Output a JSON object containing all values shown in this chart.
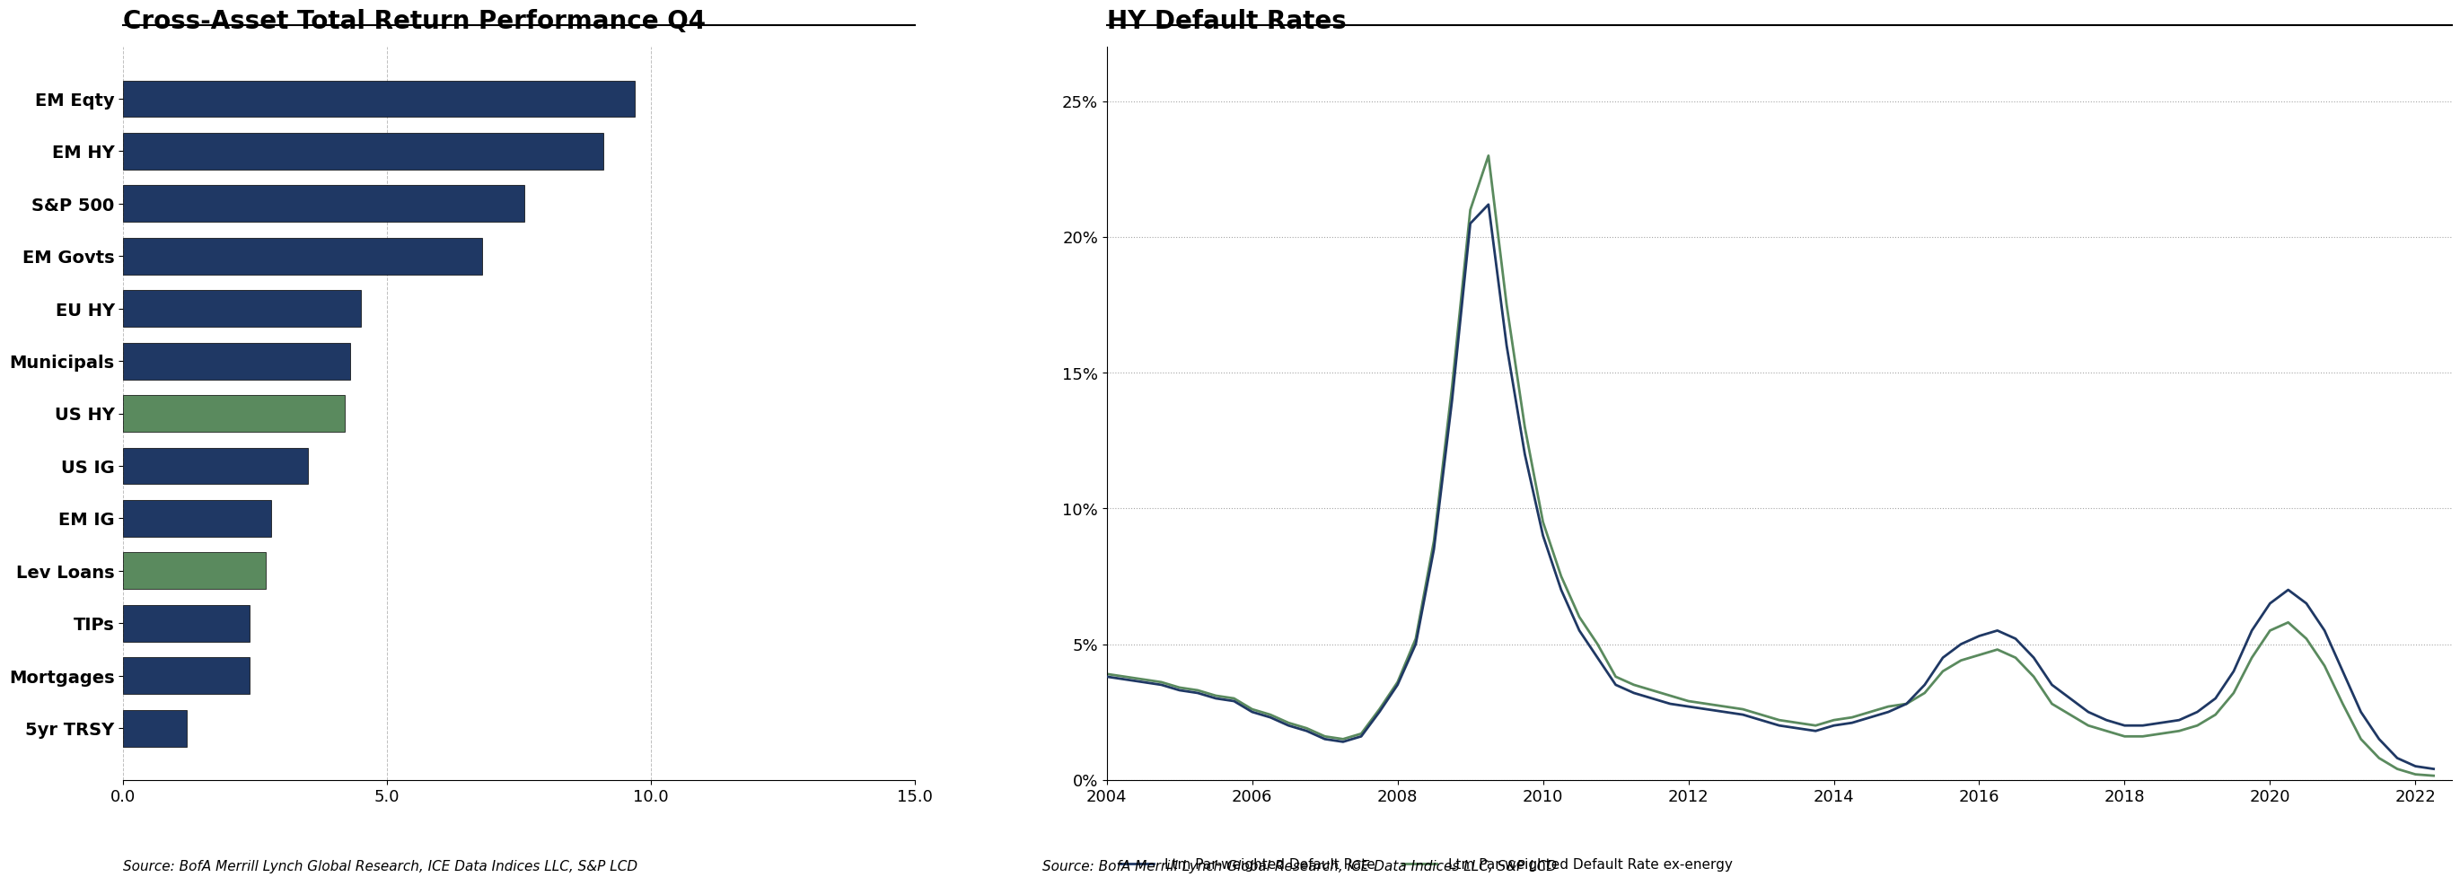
{
  "bar_chart": {
    "title": "Cross-Asset Total Return Performance Q4",
    "categories": [
      "EM Eqty",
      "EM HY",
      "S&P 500",
      "EM Govts",
      "EU HY",
      "Municipals",
      "US HY",
      "US IG",
      "EM IG",
      "Lev Loans",
      "TIPs",
      "Mortgages",
      "5yr TRSY"
    ],
    "values": [
      9.7,
      9.1,
      7.6,
      6.8,
      4.5,
      4.3,
      4.2,
      3.5,
      2.8,
      2.7,
      2.4,
      2.4,
      1.2
    ],
    "colors": [
      "#1f3864",
      "#1f3864",
      "#1f3864",
      "#1f3864",
      "#1f3864",
      "#1f3864",
      "#5a8a5e",
      "#1f3864",
      "#1f3864",
      "#5a8a5e",
      "#1f3864",
      "#1f3864",
      "#1f3864"
    ],
    "xlim": [
      0,
      15
    ],
    "xticks": [
      0.0,
      5.0,
      10.0,
      15.0
    ],
    "source": "Source: BofA Merrill Lynch Global Research, ICE Data Indices LLC, S&P LCD"
  },
  "line_chart": {
    "title": "HY Default Rates",
    "years": [
      2004,
      2004.25,
      2004.5,
      2004.75,
      2005,
      2005.25,
      2005.5,
      2005.75,
      2006,
      2006.25,
      2006.5,
      2006.75,
      2007,
      2007.25,
      2007.5,
      2007.75,
      2008,
      2008.25,
      2008.5,
      2008.75,
      2009,
      2009.25,
      2009.5,
      2009.75,
      2010,
      2010.25,
      2010.5,
      2010.75,
      2011,
      2011.25,
      2011.5,
      2011.75,
      2012,
      2012.25,
      2012.5,
      2012.75,
      2013,
      2013.25,
      2013.5,
      2013.75,
      2014,
      2014.25,
      2014.5,
      2014.75,
      2015,
      2015.25,
      2015.5,
      2015.75,
      2016,
      2016.25,
      2016.5,
      2016.75,
      2017,
      2017.25,
      2017.5,
      2017.75,
      2018,
      2018.25,
      2018.5,
      2018.75,
      2019,
      2019.25,
      2019.5,
      2019.75,
      2020,
      2020.25,
      2020.5,
      2020.75,
      2021,
      2021.25,
      2021.5,
      2021.75,
      2022,
      2022.25
    ],
    "par_weighted": [
      3.8,
      3.7,
      3.6,
      3.5,
      3.3,
      3.2,
      3.0,
      2.9,
      2.5,
      2.3,
      2.0,
      1.8,
      1.5,
      1.4,
      1.6,
      2.5,
      3.5,
      5.0,
      8.5,
      14.0,
      20.5,
      21.2,
      16.0,
      12.0,
      9.0,
      7.0,
      5.5,
      4.5,
      3.5,
      3.2,
      3.0,
      2.8,
      2.7,
      2.6,
      2.5,
      2.4,
      2.2,
      2.0,
      1.9,
      1.8,
      2.0,
      2.1,
      2.3,
      2.5,
      2.8,
      3.5,
      4.5,
      5.0,
      5.3,
      5.5,
      5.2,
      4.5,
      3.5,
      3.0,
      2.5,
      2.2,
      2.0,
      2.0,
      2.1,
      2.2,
      2.5,
      3.0,
      4.0,
      5.5,
      6.5,
      7.0,
      6.5,
      5.5,
      4.0,
      2.5,
      1.5,
      0.8,
      0.5,
      0.4
    ],
    "par_weighted_ex_energy": [
      3.9,
      3.8,
      3.7,
      3.6,
      3.4,
      3.3,
      3.1,
      3.0,
      2.6,
      2.4,
      2.1,
      1.9,
      1.6,
      1.5,
      1.7,
      2.6,
      3.6,
      5.2,
      8.8,
      14.5,
      21.0,
      23.0,
      17.5,
      13.0,
      9.5,
      7.5,
      6.0,
      5.0,
      3.8,
      3.5,
      3.3,
      3.1,
      2.9,
      2.8,
      2.7,
      2.6,
      2.4,
      2.2,
      2.1,
      2.0,
      2.2,
      2.3,
      2.5,
      2.7,
      2.8,
      3.2,
      4.0,
      4.4,
      4.6,
      4.8,
      4.5,
      3.8,
      2.8,
      2.4,
      2.0,
      1.8,
      1.6,
      1.6,
      1.7,
      1.8,
      2.0,
      2.4,
      3.2,
      4.5,
      5.5,
      5.8,
      5.2,
      4.2,
      2.8,
      1.5,
      0.8,
      0.4,
      0.2,
      0.15
    ],
    "dark_blue": "#1f3864",
    "green": "#5a8a5e",
    "ylim": [
      0,
      27
    ],
    "yticks": [
      0,
      5,
      10,
      15,
      20,
      25
    ],
    "ytick_labels": [
      "0%",
      "5%",
      "10%",
      "15%",
      "20%",
      "25%"
    ],
    "xlim": [
      2004,
      2022.5
    ],
    "xticks": [
      2004,
      2006,
      2008,
      2010,
      2012,
      2014,
      2016,
      2018,
      2020,
      2022
    ],
    "xtick_labels": [
      "2004",
      "2006",
      "2008",
      "2010",
      "2012",
      "2014",
      "2016",
      "2018",
      "2020",
      "2022"
    ],
    "legend": [
      "Ltm Par-weighted Default Rate",
      "Ltm Par-weighted Default Rate ex-energy"
    ],
    "source": "Source: BofA Merrill Lynch Global Research, ICE Data Indices LLC, S&P LCD"
  },
  "background_color": "#ffffff",
  "title_fontsize": 20,
  "label_fontsize": 14,
  "tick_fontsize": 13,
  "source_fontsize": 11
}
